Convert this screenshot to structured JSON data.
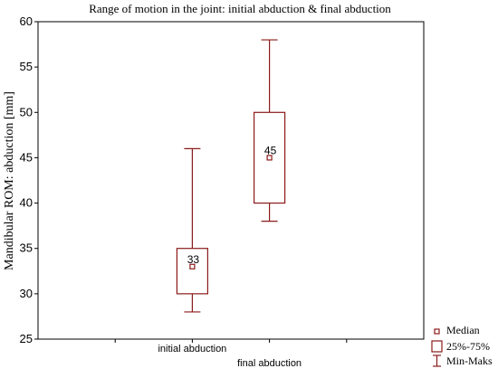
{
  "chart_data": {
    "type": "box",
    "title": "Range of motion in the joint: initial abduction & final abduction",
    "xlabel": "",
    "ylabel": "Mandibular ROM: abduction [mm]",
    "ylim": [
      25,
      60
    ],
    "yticks": [
      25,
      30,
      35,
      40,
      45,
      50,
      55,
      60
    ],
    "grid": false,
    "legend_position": "bottom-right",
    "categories": [
      "initial abduction",
      "final abduction"
    ],
    "boxes": [
      {
        "category": "initial abduction",
        "min": 28,
        "q1": 30,
        "median": 33,
        "q3": 35,
        "max": 46,
        "label": "33"
      },
      {
        "category": "final abduction",
        "min": 38,
        "q1": 40,
        "median": 45,
        "q3": 50,
        "max": 58,
        "label": "45"
      }
    ],
    "legend": [
      "Median",
      "25%-75%",
      "Min-Maks"
    ],
    "color": "#8b1a1a"
  }
}
